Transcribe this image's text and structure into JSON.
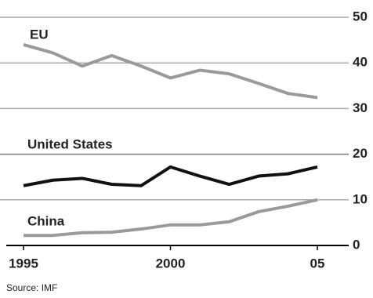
{
  "chart_data": {
    "type": "line",
    "x": [
      1995,
      1996,
      1997,
      1998,
      1999,
      2000,
      2001,
      2002,
      2003,
      2004,
      2005
    ],
    "series": [
      {
        "name": "EU",
        "color": "#9a9a9a",
        "values": [
          44,
          42.2,
          39.3,
          41.6,
          39.3,
          36.7,
          38.4,
          37.6,
          35.5,
          33.3,
          32.4
        ]
      },
      {
        "name": "United States",
        "color": "#111111",
        "values": [
          13.1,
          14.3,
          14.7,
          13.4,
          13.1,
          17.2,
          15.2,
          13.4,
          15.2,
          15.7,
          17.2
        ]
      },
      {
        "name": "China",
        "color": "#9a9a9a",
        "values": [
          2.2,
          2.2,
          2.8,
          2.9,
          3.6,
          4.5,
          4.5,
          5.2,
          7.4,
          8.6,
          10
        ]
      }
    ],
    "xlim": [
      1995,
      2005
    ],
    "xticks": [
      1995,
      2000,
      {
        "value": 2005,
        "label": "05"
      }
    ],
    "ylim": [
      0,
      50
    ],
    "yticks": [
      0,
      10,
      20,
      30,
      40,
      50
    ],
    "grid": true,
    "source": "Source: IMF"
  }
}
